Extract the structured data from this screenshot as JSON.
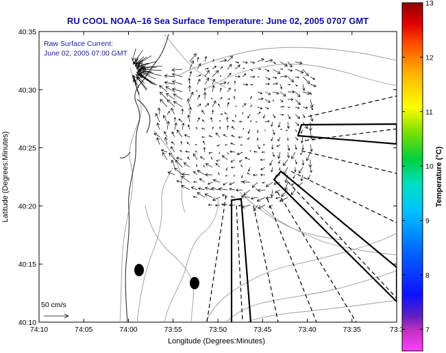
{
  "title": "RU COOL  NOAA–16  Sea Surface Temperature:  June 02, 2005 0707 GMT",
  "inset": {
    "line1": "Raw Surface Current:",
    "line2": "June 02, 2005 07:00 GMT"
  },
  "scale_label": "50 cm/s",
  "map_axes": {
    "xlabel": "Longitude (Degrees:Minutes)",
    "ylabel": "Latitude (Degrees:Minutes)",
    "x_ticks": [
      "74:10",
      "74:05",
      "74:00",
      "73:55",
      "73:50",
      "73:45",
      "73:40",
      "73:35",
      "73:3"
    ],
    "y_ticks": [
      "40:10",
      "40:15",
      "40:20",
      "40:25",
      "40:30",
      "40:35"
    ]
  },
  "colorbar": {
    "label": "Temperature (°C)",
    "ticks": [
      "7",
      "8",
      "9",
      "10",
      "11",
      "12",
      "13"
    ],
    "range": [
      6.6,
      13
    ]
  },
  "colors": {
    "title": "#1010a0",
    "land_contour": "#9a9a9a",
    "coastline": "#303030",
    "vectors": "#000000"
  }
}
